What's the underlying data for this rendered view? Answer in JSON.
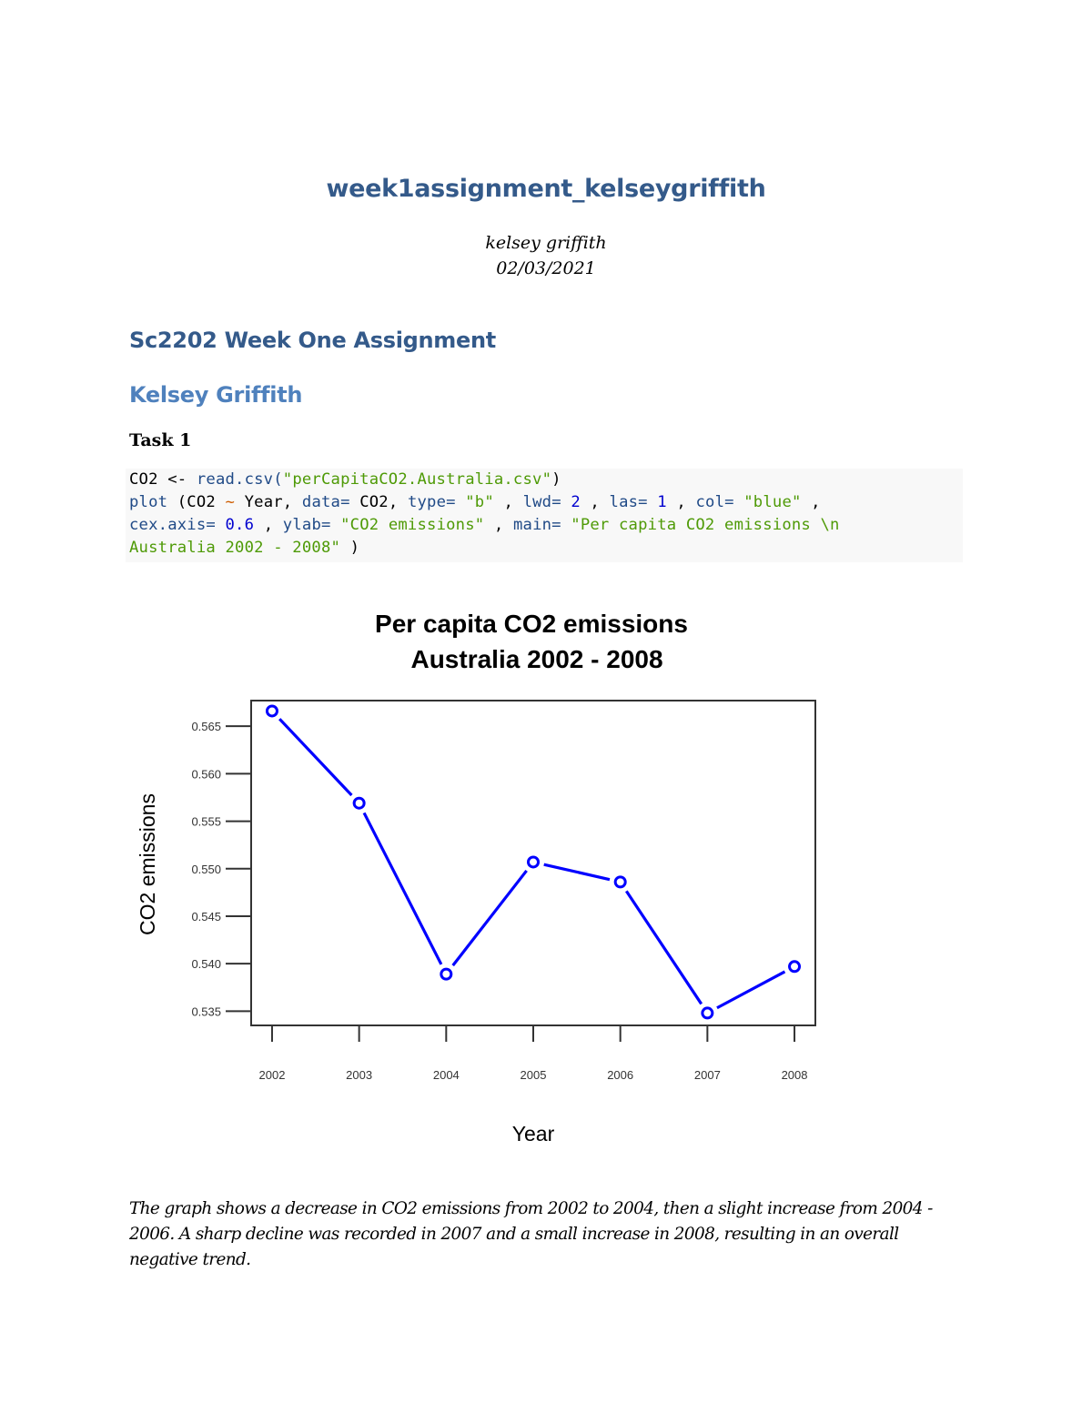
{
  "document": {
    "title": "week1assignment_kelseygriffith",
    "author": "kelsey griffith",
    "date": "02/03/2021"
  },
  "sections": {
    "h1": "Sc2202 Week One Assignment",
    "h2": "Kelsey Griffith",
    "h3": "Task 1"
  },
  "code": {
    "lines": [
      [
        {
          "t": "CO2 <- ",
          "c": "plain"
        },
        {
          "t": "read.csv(",
          "c": "fn"
        },
        {
          "t": "\"perCapitaCO2.Australia.csv\"",
          "c": "str"
        },
        {
          "t": ")",
          "c": "plain"
        }
      ],
      [
        {
          "t": "plot",
          "c": "fn"
        },
        {
          "t": " (CO2 ",
          "c": "plain"
        },
        {
          "t": "~",
          "c": "op"
        },
        {
          "t": " Year, ",
          "c": "plain"
        },
        {
          "t": "data=",
          "c": "kw"
        },
        {
          "t": " CO2, ",
          "c": "plain"
        },
        {
          "t": "type=",
          "c": "kw"
        },
        {
          "t": " \"b\"",
          "c": "str"
        },
        {
          "t": " , ",
          "c": "plain"
        },
        {
          "t": "lwd=",
          "c": "kw"
        },
        {
          "t": " 2",
          "c": "num"
        },
        {
          "t": " , ",
          "c": "plain"
        },
        {
          "t": "las=",
          "c": "kw"
        },
        {
          "t": " 1",
          "c": "num"
        },
        {
          "t": " , ",
          "c": "plain"
        },
        {
          "t": "col=",
          "c": "kw"
        },
        {
          "t": " \"blue\"",
          "c": "str"
        },
        {
          "t": " ,",
          "c": "plain"
        }
      ],
      [
        {
          "t": "cex.axis=",
          "c": "kw"
        },
        {
          "t": " 0.6",
          "c": "num"
        },
        {
          "t": " , ",
          "c": "plain"
        },
        {
          "t": "ylab=",
          "c": "kw"
        },
        {
          "t": " \"CO2 emissions\"",
          "c": "str"
        },
        {
          "t": " , ",
          "c": "plain"
        },
        {
          "t": "main=",
          "c": "kw"
        },
        {
          "t": " \"Per capita CO2 emissions \\n",
          "c": "str"
        }
      ],
      [
        {
          "t": "Australia 2002 - 2008\"",
          "c": "str"
        },
        {
          "t": " )",
          "c": "plain"
        }
      ]
    ]
  },
  "chart_data": {
    "type": "line",
    "title": "Per capita CO2 emissions\nAustralia 2002 - 2008",
    "title_lines": [
      "Per capita CO2 emissions",
      "Australia 2002 - 2008"
    ],
    "xlabel": "Year",
    "ylabel": "CO2 emissions",
    "x": [
      2002,
      2003,
      2004,
      2005,
      2006,
      2007,
      2008
    ],
    "x_tick_labels": [
      "2002",
      "2003",
      "2004",
      "2005",
      "2006",
      "2007",
      "2008"
    ],
    "series": [
      {
        "name": "CO2",
        "color": "#0000ff",
        "plot_type": "b",
        "line_width": 2,
        "values": [
          0.5666,
          0.5569,
          0.5389,
          0.5507,
          0.5486,
          0.5348,
          0.5397
        ]
      }
    ],
    "y_ticks": [
      0.535,
      0.54,
      0.545,
      0.55,
      0.555,
      0.56,
      0.565
    ],
    "y_tick_labels": [
      "0.535",
      "0.540",
      "0.545",
      "0.550",
      "0.555",
      "0.560",
      "0.565"
    ],
    "ylim": [
      0.5335,
      0.5677
    ],
    "xlim": [
      2001.76,
      2008.24
    ],
    "grid": false,
    "legend": null
  },
  "summary": "The graph shows a decrease in CO2 emissions from 2002 to 2004, then a slight increase from 2004 - 2006. A sharp decline was recorded in 2007 and a small increase in 2008, resulting in an overall negative trend."
}
